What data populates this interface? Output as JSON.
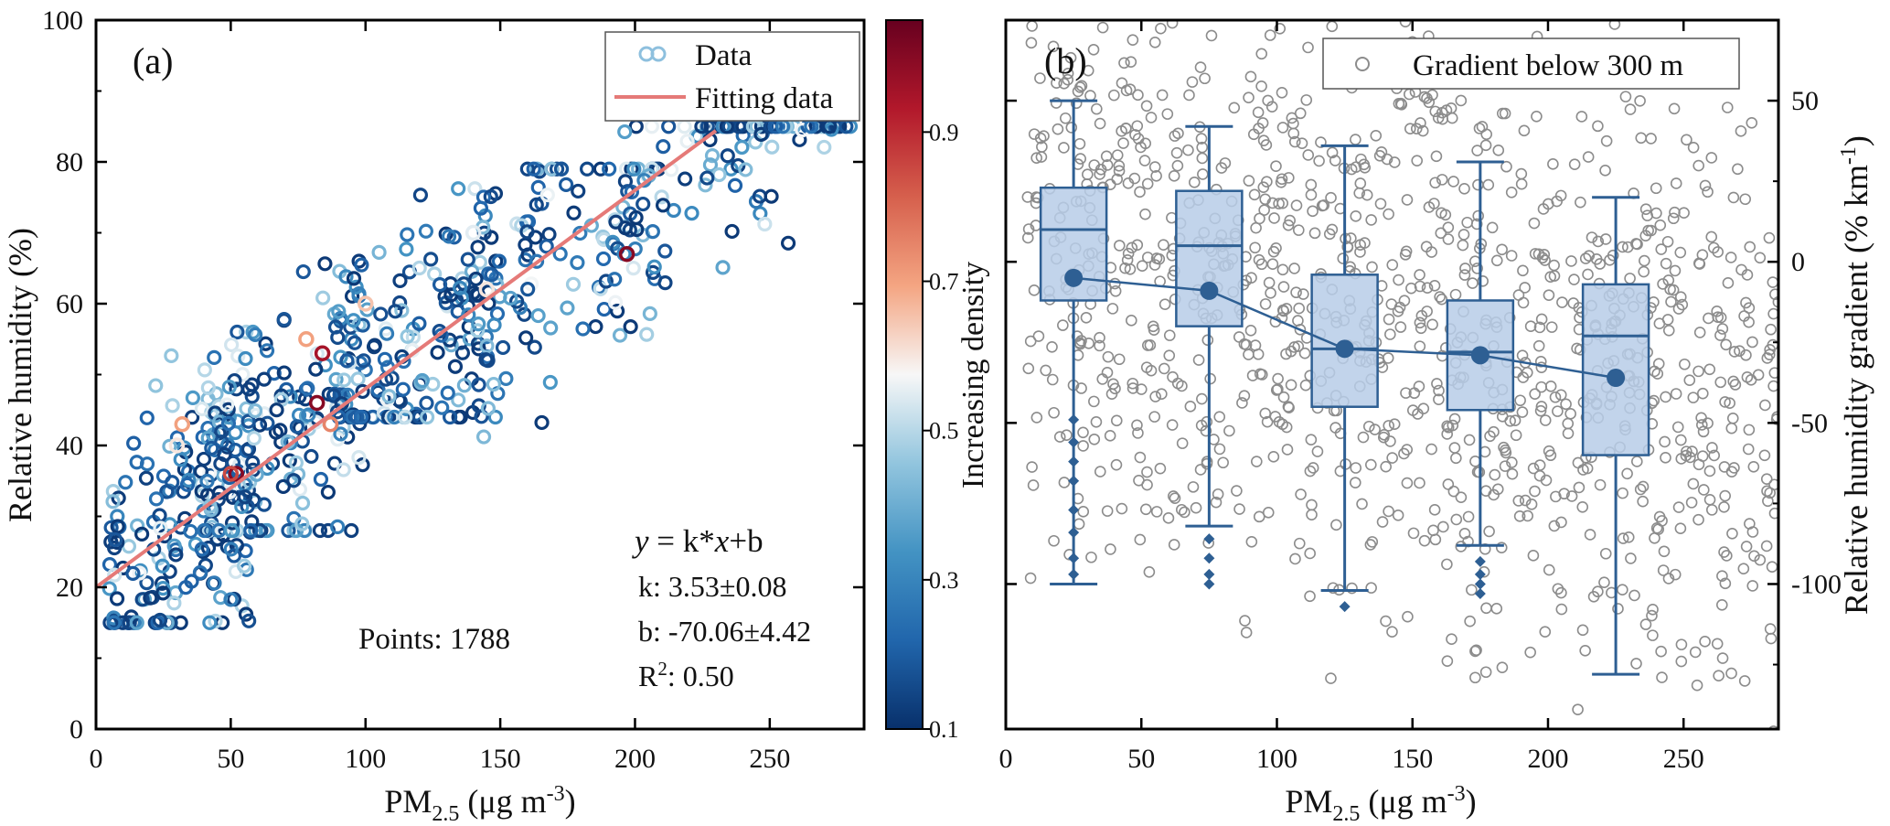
{
  "panel_a": {
    "label": "(a)",
    "legend": {
      "data": "Data",
      "fit": "Fitting data"
    },
    "points_text": "Points: 1788",
    "equation": {
      "y": "y",
      "eq": " = k*",
      "x": "x",
      "tail": "+b"
    },
    "k_text": "k: 3.53±0.08",
    "b_text": "b: -70.06±4.42",
    "r2": {
      "prefix": "R",
      "sup": "2",
      "suffix": ": 0.50"
    },
    "xlabel": {
      "main": "PM",
      "sub": "2.5",
      "unit": " (μg m",
      "exp": "-3",
      "close": ")"
    },
    "ylabel": "Relative humidity (%)",
    "colorbar_label": "Increasing density"
  },
  "panel_b": {
    "label": "(b)",
    "legend": "Gradient below 300 m",
    "xlabel": {
      "main": "PM",
      "sub": "2.5",
      "unit": " (μg m",
      "exp": "-3",
      "close": ")"
    },
    "ylabel": {
      "main": "Relative humidity gradient (% km",
      "exp": "-1",
      "close": ")"
    }
  },
  "colors": {
    "fit_line": "#e57a78",
    "box_fill": "#b7cde8",
    "box_stroke": "#2e5f93",
    "scatter_b": "#8c8c8c",
    "colorbar_stops": [
      "#08306b",
      "#2166ac",
      "#4393c3",
      "#92c5de",
      "#f7f7f7",
      "#f4a582",
      "#d6604d",
      "#b2182b",
      "#67001f"
    ]
  },
  "chart_data": [
    {
      "type": "scatter",
      "panel": "a",
      "xlim": [
        0,
        285
      ],
      "ylim": [
        0,
        100
      ],
      "xticks": [
        0,
        50,
        100,
        150,
        200,
        250
      ],
      "yticks": [
        0,
        20,
        40,
        60,
        80,
        100
      ],
      "fit": {
        "k": 0.28,
        "b": 20,
        "x_range": [
          0,
          230
        ]
      },
      "colorbar": {
        "range": [
          0.1,
          1.05
        ],
        "ticks": [
          0.1,
          0.3,
          0.5,
          0.7,
          0.9
        ]
      },
      "n_points": 1788,
      "clusters": [
        {
          "x": [
            5,
            60
          ],
          "y": [
            15,
            56
          ],
          "n": 190
        },
        {
          "x": [
            40,
            100
          ],
          "y": [
            28,
            66
          ],
          "n": 160
        },
        {
          "x": [
            90,
            150
          ],
          "y": [
            44,
            79
          ],
          "n": 150
        },
        {
          "x": [
            140,
            210
          ],
          "y": [
            34,
            79
          ],
          "n": 110
        },
        {
          "x": [
            195,
            280
          ],
          "y": [
            45,
            85
          ],
          "n": 110
        }
      ],
      "dense_points": [
        {
          "x": 52,
          "y": 36,
          "d": 1.0
        },
        {
          "x": 82,
          "y": 46,
          "d": 1.0
        },
        {
          "x": 84,
          "y": 53,
          "d": 0.95
        },
        {
          "x": 197,
          "y": 67,
          "d": 1.0
        },
        {
          "x": 50,
          "y": 36,
          "d": 0.85
        },
        {
          "x": 87,
          "y": 43,
          "d": 0.75
        },
        {
          "x": 32,
          "y": 43,
          "d": 0.7
        },
        {
          "x": 78,
          "y": 55,
          "d": 0.7
        },
        {
          "x": 100,
          "y": 60,
          "d": 0.65
        },
        {
          "x": 145,
          "y": 62,
          "d": 0.6
        },
        {
          "x": 30,
          "y": 40,
          "d": 0.6
        },
        {
          "x": 140,
          "y": 70,
          "d": 0.55
        }
      ]
    },
    {
      "type": "box",
      "panel": "b",
      "xlim": [
        0,
        285
      ],
      "ylim": [
        -145,
        75
      ],
      "xticks": [
        0,
        50,
        100,
        150,
        200,
        250
      ],
      "yticks": [
        -100,
        -50,
        0,
        50
      ],
      "categories": [
        25,
        75,
        125,
        175,
        225
      ],
      "boxes": [
        {
          "x": 25,
          "whislo": -100,
          "q1": -12,
          "med": 10,
          "q3": 23,
          "whishi": 50,
          "mean": -5
        },
        {
          "x": 75,
          "whislo": -82,
          "q1": -20,
          "med": 5,
          "q3": 22,
          "whishi": 42,
          "mean": -9
        },
        {
          "x": 125,
          "whislo": -102,
          "q1": -45,
          "med": -27,
          "q3": -4,
          "whishi": 36,
          "mean": -27
        },
        {
          "x": 175,
          "whislo": -88,
          "q1": -46,
          "med": -28,
          "q3": -12,
          "whishi": 31,
          "mean": -29
        },
        {
          "x": 225,
          "whislo": -128,
          "q1": -60,
          "med": -23,
          "q3": -7,
          "whishi": 20,
          "mean": -36
        }
      ],
      "outliers": {
        "25": [
          -49,
          -56,
          -62,
          -68,
          -77,
          -84,
          -92,
          -97
        ],
        "75": [
          -86,
          -92,
          -97,
          -100
        ],
        "125": [
          -107
        ],
        "175": [
          -93,
          -97,
          -100,
          -103
        ]
      },
      "scatter_n": 1200
    }
  ]
}
